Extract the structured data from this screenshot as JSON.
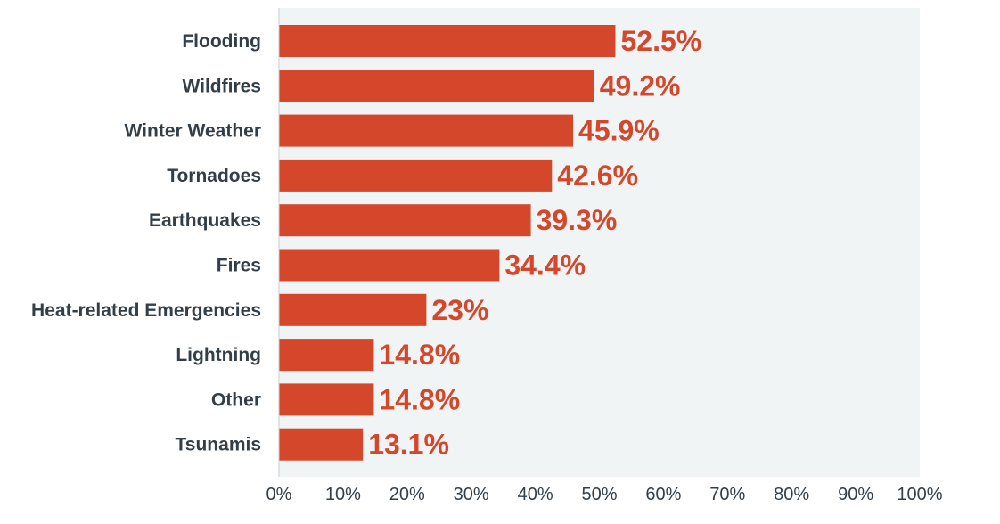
{
  "chart_data": {
    "type": "bar",
    "orientation": "horizontal",
    "categories": [
      "Flooding",
      "Wildfires",
      "Winter Weather",
      "Tornadoes",
      "Earthquakes",
      "Fires",
      "Heat-related Emergencies",
      "Lightning",
      "Other",
      "Tsunamis"
    ],
    "values": [
      52.5,
      49.2,
      45.9,
      42.6,
      39.3,
      34.4,
      23,
      14.8,
      14.8,
      13.1
    ],
    "value_labels": [
      "52.5%",
      "49.2%",
      "45.9%",
      "42.6%",
      "39.3%",
      "34.4%",
      "23%",
      "14.8%",
      "14.8%",
      "13.1%"
    ],
    "x_ticks": [
      0,
      10,
      20,
      30,
      40,
      50,
      60,
      70,
      80,
      90,
      100
    ],
    "x_tick_labels": [
      "0%",
      "10%",
      "20%",
      "30%",
      "40%",
      "50%",
      "60%",
      "70%",
      "80%",
      "90%",
      "100%"
    ],
    "xlim": [
      0,
      100
    ],
    "title": "",
    "xlabel": "",
    "ylabel": "",
    "grid": false,
    "legend": "none",
    "colors": {
      "bar": "#d5472b",
      "value_label": "#d5472b",
      "plot_background": "#f1f4f4",
      "axis": "#c9cfd3",
      "text": "#333f48"
    }
  }
}
